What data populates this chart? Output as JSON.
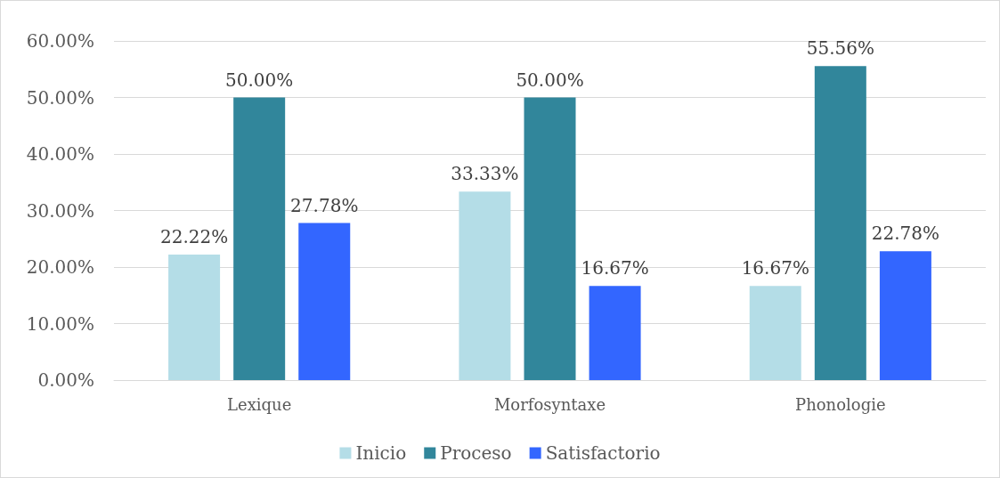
{
  "chart_data": {
    "type": "bar",
    "categories": [
      "Lexique",
      "Morfosyntaxe",
      "Phonologie"
    ],
    "series": [
      {
        "name": "Inicio",
        "color": "#b4dde7",
        "values": [
          22.22,
          33.33,
          16.67
        ],
        "value_labels": [
          "22.22%",
          "33.33%",
          "16.67%"
        ]
      },
      {
        "name": "Proceso",
        "color": "#31869b",
        "values": [
          50.0,
          50.0,
          55.56
        ],
        "value_labels": [
          "50.00%",
          "50.00%",
          "55.56%"
        ]
      },
      {
        "name": "Satisfactorio",
        "color": "#3366ff",
        "values": [
          27.78,
          16.67,
          22.78
        ],
        "value_labels": [
          "27.78%",
          "16.67%",
          "22.78%"
        ]
      }
    ],
    "ylim": [
      0,
      60
    ],
    "yticks": [
      {
        "value": 0,
        "label": "0.00%"
      },
      {
        "value": 10,
        "label": "10.00%"
      },
      {
        "value": 20,
        "label": "20.00%"
      },
      {
        "value": 30,
        "label": "30.00%"
      },
      {
        "value": 40,
        "label": "40.00%"
      },
      {
        "value": 50,
        "label": "50.00%"
      },
      {
        "value": 60,
        "label": "60.00%"
      }
    ],
    "grid": "y",
    "legend": "bottom"
  }
}
